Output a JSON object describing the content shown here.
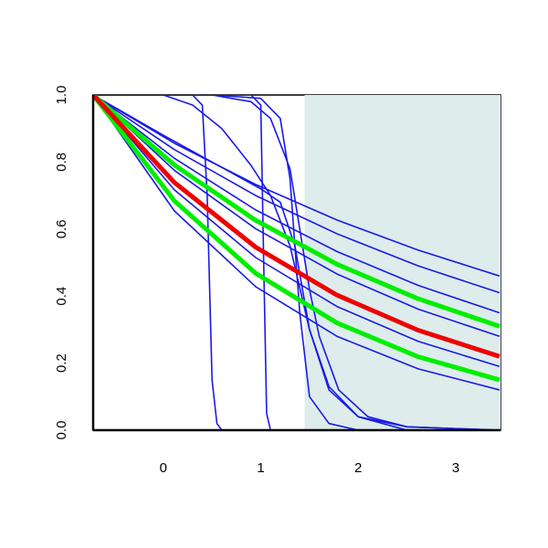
{
  "chart_data": {
    "type": "line",
    "xlim": [
      -0.72,
      3.46
    ],
    "ylim": [
      0,
      1
    ],
    "xticks": [
      0,
      1,
      2,
      3
    ],
    "yticks": [
      {
        "value": 0,
        "label": "0.0"
      },
      {
        "value": 0.2,
        "label": "0.2"
      },
      {
        "value": 0.4,
        "label": "0.4"
      },
      {
        "value": 0.6,
        "label": "0.6"
      },
      {
        "value": 0.8,
        "label": "0.8"
      },
      {
        "value": 1,
        "label": "1.0"
      }
    ],
    "shaded_region": {
      "x": [
        1.45,
        3.46
      ],
      "color": "#deecec"
    },
    "series": [
      {
        "color": "#1a1ae6",
        "x": [
          -0.72,
          0.114,
          0.948,
          1.782,
          2.616,
          3.45
        ],
        "values": [
          1,
          0.856,
          0.733,
          0.627,
          0.537,
          0.46
        ]
      },
      {
        "color": "#1a1ae6",
        "x": [
          -0.72,
          0.114,
          0.948,
          1.782,
          2.616,
          3.45
        ],
        "values": [
          1,
          0.837,
          0.7,
          0.586,
          0.49,
          0.41
        ]
      },
      {
        "color": "#1a1ae6",
        "x": [
          -0.72,
          0.114,
          0.948,
          1.782,
          2.616,
          3.45
        ],
        "values": [
          1,
          0.811,
          0.657,
          0.533,
          0.432,
          0.35
        ]
      },
      {
        "color": "#1a1ae6",
        "x": [
          -0.72,
          0.114,
          0.948,
          1.782,
          2.616,
          3.45
        ],
        "values": [
          1,
          0.775,
          0.601,
          0.466,
          0.361,
          0.28
        ]
      },
      {
        "color": "#1a1ae6",
        "x": [
          -0.72,
          0.114,
          0.948,
          1.782,
          2.616,
          3.45
        ],
        "values": [
          1,
          0.717,
          0.515,
          0.369,
          0.265,
          0.19
        ]
      },
      {
        "color": "#1a1ae6",
        "x": [
          -0.72,
          0.114,
          0.948,
          1.782,
          2.616,
          3.45
        ],
        "values": [
          1,
          0.654,
          0.428,
          0.28,
          0.183,
          0.12
        ]
      },
      {
        "color": "#1a1ae6",
        "x": [
          -0.72,
          0.3,
          0.4,
          0.45,
          0.5,
          0.55,
          0.6,
          3.45
        ],
        "values": [
          1,
          1,
          0.97,
          0.7,
          0.15,
          0.02,
          0,
          0
        ]
      },
      {
        "color": "#1a1ae6",
        "x": [
          -0.72,
          0.9,
          1.0,
          1.03,
          1.06,
          1.1,
          3.45
        ],
        "values": [
          1,
          1,
          0.97,
          0.5,
          0.05,
          0,
          0
        ]
      },
      {
        "color": "#1a1ae6",
        "x": [
          -0.72,
          0.5,
          1.0,
          1.2,
          1.3,
          1.4,
          1.5,
          1.7,
          2.0,
          3.45
        ],
        "values": [
          1,
          1,
          0.99,
          0.93,
          0.75,
          0.35,
          0.1,
          0.02,
          0,
          0
        ]
      },
      {
        "color": "#1a1ae6",
        "x": [
          -0.72,
          0,
          0.3,
          0.6,
          0.9,
          1.1,
          1.3,
          1.5,
          1.7,
          2.0,
          2.5,
          3.45
        ],
        "values": [
          1,
          1,
          0.97,
          0.9,
          0.79,
          0.7,
          0.55,
          0.3,
          0.13,
          0.04,
          0,
          0
        ]
      },
      {
        "color": "#1a1ae6",
        "x": [
          -0.72,
          0.5,
          0.9,
          1.1,
          1.3,
          1.4,
          1.5,
          1.6,
          1.8,
          2.1,
          2.5,
          3.45
        ],
        "values": [
          1,
          1,
          0.98,
          0.93,
          0.78,
          0.6,
          0.42,
          0.28,
          0.12,
          0.04,
          0.01,
          0
        ]
      },
      {
        "color": "#1a1ae6",
        "x": [
          -0.72,
          0,
          0.5,
          1.0,
          1.2,
          1.35,
          1.5,
          1.7,
          2.0,
          2.5,
          3.45
        ],
        "values": [
          1,
          0.88,
          0.8,
          0.72,
          0.68,
          0.55,
          0.3,
          0.12,
          0.04,
          0.01,
          0
        ]
      },
      {
        "color": "#00ee00",
        "width": 5,
        "x": [
          -0.72,
          0.114,
          0.948,
          1.782,
          2.616,
          3.45
        ],
        "values": [
          1,
          0.791,
          0.626,
          0.495,
          0.392,
          0.31
        ]
      },
      {
        "color": "#00ee00",
        "width": 5,
        "x": [
          -0.72,
          0.114,
          0.948,
          1.782,
          2.616,
          3.45
        ],
        "values": [
          1,
          0.684,
          0.468,
          0.32,
          0.219,
          0.15
        ]
      },
      {
        "color": "#ee0000",
        "width": 5,
        "x": [
          -0.72,
          0.114,
          0.948,
          1.782,
          2.616,
          3.45
        ],
        "values": [
          1,
          0.739,
          0.546,
          0.403,
          0.298,
          0.22
        ]
      }
    ]
  }
}
